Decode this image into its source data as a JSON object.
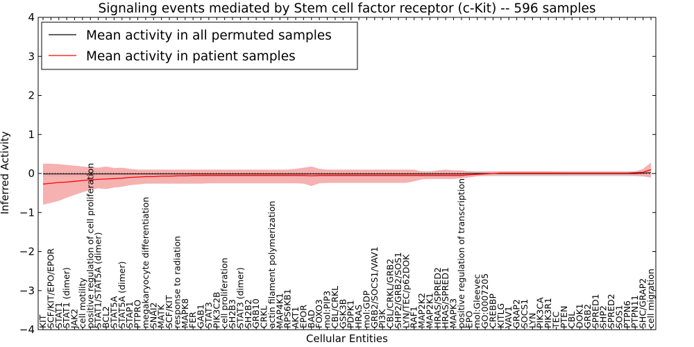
{
  "chart_data": {
    "type": "line",
    "title": "Signaling events mediated by Stem cell factor receptor (c-Kit) -- 596 samples",
    "xlabel": "Cellular Entities",
    "ylabel": "Inferred Activity",
    "ylim": [
      -4,
      4
    ],
    "yticks": [
      "−4",
      "−3",
      "−2",
      "−1",
      "0",
      "1",
      "2",
      "3",
      "4"
    ],
    "yticks_values": [
      -4,
      -3,
      -2,
      -1,
      0,
      1,
      2,
      3,
      4
    ],
    "legend_position": "top-left",
    "zero_line": 0,
    "categories": [
      "KIT",
      "SCF/KIT/EPO/EPOR",
      "STAT1",
      "STAT1 (dimer)",
      "JAK2",
      "cell motility",
      "positive regulation of cell proliferation",
      "STAT1/STAT5A (dimer)",
      "BCL2",
      "STAT5A",
      "STAT5A (dimer)",
      "STAP1",
      "PTPRO",
      "megakaryocyte differentiation",
      "SNAI2",
      "MATK",
      "SCF/KIT",
      "response to radiation",
      "MAPK8",
      "FER",
      "GAB1",
      "STAT3",
      "PIK3C2B",
      "cell proliferation",
      "SH2B3",
      "STAT3 (dimer)",
      "SH2B2",
      "GRB10",
      "CRKL",
      "actin filament polymerization",
      "MAP4K1",
      "RPS6KB1",
      "AKT1",
      "EPOR",
      "BAD",
      "FOXO3",
      "mol:PIP3",
      "CBL/CRKL",
      "GSK3B",
      "PDPK1",
      "HRAS",
      "mol:GDP",
      "GRB2/SOCS1/VAV1",
      "PI3K",
      "CBL/CRKL/GRB2",
      "SHP2/GRB2/SOS1",
      "LYN/TEC/p62DOK",
      "RAF1",
      "MAP2K2",
      "MAP2K1",
      "HRAS/SPRED2",
      "HRAS/SPRED1",
      "MAPK3",
      "positive regulation of transcription",
      "EPO",
      "mol:Gleevec",
      "GO:0007205",
      "CREBBP",
      "KITLG",
      "VAV1",
      "GRAP2",
      "SOCS1",
      "LYN",
      "PIK3CA",
      "PIK3R1",
      "TEC",
      "PTEN",
      "CBL",
      "DOK1",
      "GRB2",
      "SPRED1",
      "SHP2",
      "SPRED2",
      "SOS1",
      "PTPN6",
      "PTPN11",
      "SHC/GRAP2",
      "cell migration"
    ],
    "series": [
      {
        "name": "Mean activity in all permuted samples",
        "color": "#000000",
        "band_color": "#c8c8c8",
        "values": [
          -0.01,
          -0.01,
          -0.01,
          -0.01,
          -0.01,
          -0.01,
          -0.01,
          -0.01,
          -0.01,
          -0.01,
          -0.01,
          -0.01,
          -0.01,
          -0.01,
          -0.01,
          -0.01,
          -0.01,
          -0.01,
          -0.01,
          -0.01,
          -0.01,
          -0.01,
          -0.01,
          -0.01,
          -0.01,
          -0.01,
          -0.01,
          -0.01,
          -0.01,
          -0.01,
          -0.01,
          -0.01,
          -0.01,
          -0.01,
          -0.01,
          -0.01,
          -0.01,
          -0.01,
          -0.01,
          -0.01,
          -0.01,
          -0.01,
          -0.01,
          -0.01,
          -0.01,
          -0.01,
          -0.01,
          -0.01,
          -0.01,
          -0.01,
          -0.01,
          -0.01,
          -0.01,
          -0.01,
          0.0,
          0.0,
          0.0,
          0.0,
          0.0,
          0.0,
          0.0,
          0.0,
          0.0,
          0.0,
          0.0,
          0.0,
          0.0,
          0.0,
          0.0,
          0.0,
          0.0,
          0.0,
          0.0,
          0.0,
          0.0,
          0.0,
          0.01,
          0.02
        ],
        "band_upper": [
          0.06,
          0.06,
          0.06,
          0.06,
          0.06,
          0.06,
          0.06,
          0.06,
          0.06,
          0.06,
          0.06,
          0.06,
          0.06,
          0.06,
          0.06,
          0.06,
          0.06,
          0.06,
          0.06,
          0.06,
          0.06,
          0.06,
          0.06,
          0.06,
          0.06,
          0.06,
          0.06,
          0.06,
          0.06,
          0.06,
          0.06,
          0.06,
          0.06,
          0.06,
          0.06,
          0.06,
          0.06,
          0.06,
          0.06,
          0.06,
          0.06,
          0.06,
          0.06,
          0.06,
          0.06,
          0.06,
          0.06,
          0.06,
          0.06,
          0.06,
          0.06,
          0.06,
          0.06,
          0.06,
          0.06,
          0.06,
          0.06,
          0.06,
          0.06,
          0.06,
          0.06,
          0.06,
          0.06,
          0.06,
          0.06,
          0.06,
          0.06,
          0.06,
          0.06,
          0.06,
          0.06,
          0.06,
          0.06,
          0.06,
          0.06,
          0.06,
          0.08,
          0.1
        ],
        "band_lower": [
          -0.08,
          -0.08,
          -0.08,
          -0.08,
          -0.08,
          -0.08,
          -0.08,
          -0.08,
          -0.08,
          -0.08,
          -0.08,
          -0.08,
          -0.08,
          -0.08,
          -0.08,
          -0.08,
          -0.08,
          -0.08,
          -0.08,
          -0.08,
          -0.08,
          -0.08,
          -0.08,
          -0.08,
          -0.08,
          -0.08,
          -0.08,
          -0.08,
          -0.08,
          -0.08,
          -0.08,
          -0.08,
          -0.08,
          -0.08,
          -0.08,
          -0.08,
          -0.08,
          -0.08,
          -0.08,
          -0.08,
          -0.08,
          -0.08,
          -0.08,
          -0.08,
          -0.08,
          -0.08,
          -0.08,
          -0.08,
          -0.08,
          -0.08,
          -0.08,
          -0.08,
          -0.08,
          -0.08,
          -0.07,
          -0.07,
          -0.07,
          -0.07,
          -0.07,
          -0.07,
          -0.07,
          -0.07,
          -0.07,
          -0.07,
          -0.07,
          -0.07,
          -0.07,
          -0.07,
          -0.07,
          -0.07,
          -0.07,
          -0.07,
          -0.07,
          -0.07,
          -0.07,
          -0.07,
          -0.08,
          -0.1
        ]
      },
      {
        "name": "Mean activity in patient samples",
        "color": "#ff0000",
        "band_color": "#f5a3a3",
        "values": [
          -0.27,
          -0.25,
          -0.23,
          -0.22,
          -0.2,
          -0.18,
          -0.16,
          -0.15,
          -0.14,
          -0.13,
          -0.12,
          -0.1,
          -0.09,
          -0.08,
          -0.08,
          -0.07,
          -0.07,
          -0.06,
          -0.06,
          -0.05,
          -0.05,
          -0.05,
          -0.05,
          -0.05,
          -0.05,
          -0.05,
          -0.05,
          -0.05,
          -0.05,
          -0.05,
          -0.05,
          -0.05,
          -0.05,
          -0.05,
          -0.06,
          -0.05,
          -0.05,
          -0.05,
          -0.05,
          -0.05,
          -0.05,
          -0.05,
          -0.05,
          -0.05,
          -0.05,
          -0.05,
          -0.05,
          -0.05,
          -0.05,
          -0.05,
          -0.05,
          -0.05,
          -0.05,
          -0.05,
          -0.03,
          -0.02,
          -0.01,
          0.0,
          0.01,
          0.01,
          0.01,
          0.01,
          0.01,
          0.01,
          0.01,
          0.01,
          0.01,
          0.01,
          0.01,
          0.01,
          0.01,
          0.01,
          0.01,
          0.01,
          0.01,
          0.02,
          0.03,
          0.1
        ],
        "band_upper": [
          0.25,
          0.25,
          0.24,
          0.22,
          0.2,
          0.18,
          0.16,
          0.15,
          0.18,
          0.14,
          0.15,
          0.12,
          0.1,
          0.1,
          0.1,
          0.1,
          0.1,
          0.1,
          0.1,
          0.1,
          0.1,
          0.1,
          0.1,
          0.1,
          0.1,
          0.1,
          0.1,
          0.1,
          0.1,
          0.1,
          0.1,
          0.1,
          0.12,
          0.15,
          0.18,
          0.12,
          0.1,
          0.1,
          0.1,
          0.1,
          0.1,
          0.1,
          0.1,
          0.1,
          0.1,
          0.1,
          0.1,
          0.1,
          0.05,
          0.05,
          0.08,
          0.1,
          0.08,
          0.08,
          0.05,
          0.04,
          0.04,
          0.05,
          0.05,
          0.05,
          0.05,
          0.05,
          0.05,
          0.05,
          0.05,
          0.05,
          0.04,
          0.04,
          0.04,
          0.04,
          0.04,
          0.04,
          0.04,
          0.04,
          0.04,
          0.05,
          0.12,
          0.28
        ],
        "band_lower": [
          -0.8,
          -0.75,
          -0.7,
          -0.62,
          -0.55,
          -0.48,
          -0.42,
          -0.38,
          -0.4,
          -0.36,
          -0.34,
          -0.3,
          -0.28,
          -0.26,
          -0.26,
          -0.26,
          -0.26,
          -0.26,
          -0.26,
          -0.26,
          -0.26,
          -0.25,
          -0.25,
          -0.25,
          -0.25,
          -0.25,
          -0.25,
          -0.25,
          -0.25,
          -0.25,
          -0.25,
          -0.25,
          -0.25,
          -0.26,
          -0.32,
          -0.25,
          -0.24,
          -0.24,
          -0.24,
          -0.24,
          -0.24,
          -0.24,
          -0.24,
          -0.24,
          -0.24,
          -0.24,
          -0.24,
          -0.2,
          -0.15,
          -0.14,
          -0.14,
          -0.14,
          -0.14,
          -0.12,
          -0.1,
          -0.07,
          -0.05,
          -0.04,
          -0.04,
          -0.04,
          -0.04,
          -0.04,
          -0.04,
          -0.04,
          -0.04,
          -0.04,
          -0.04,
          -0.04,
          -0.04,
          -0.04,
          -0.04,
          -0.04,
          -0.04,
          -0.04,
          -0.04,
          -0.05,
          -0.06,
          -0.1
        ]
      }
    ]
  }
}
